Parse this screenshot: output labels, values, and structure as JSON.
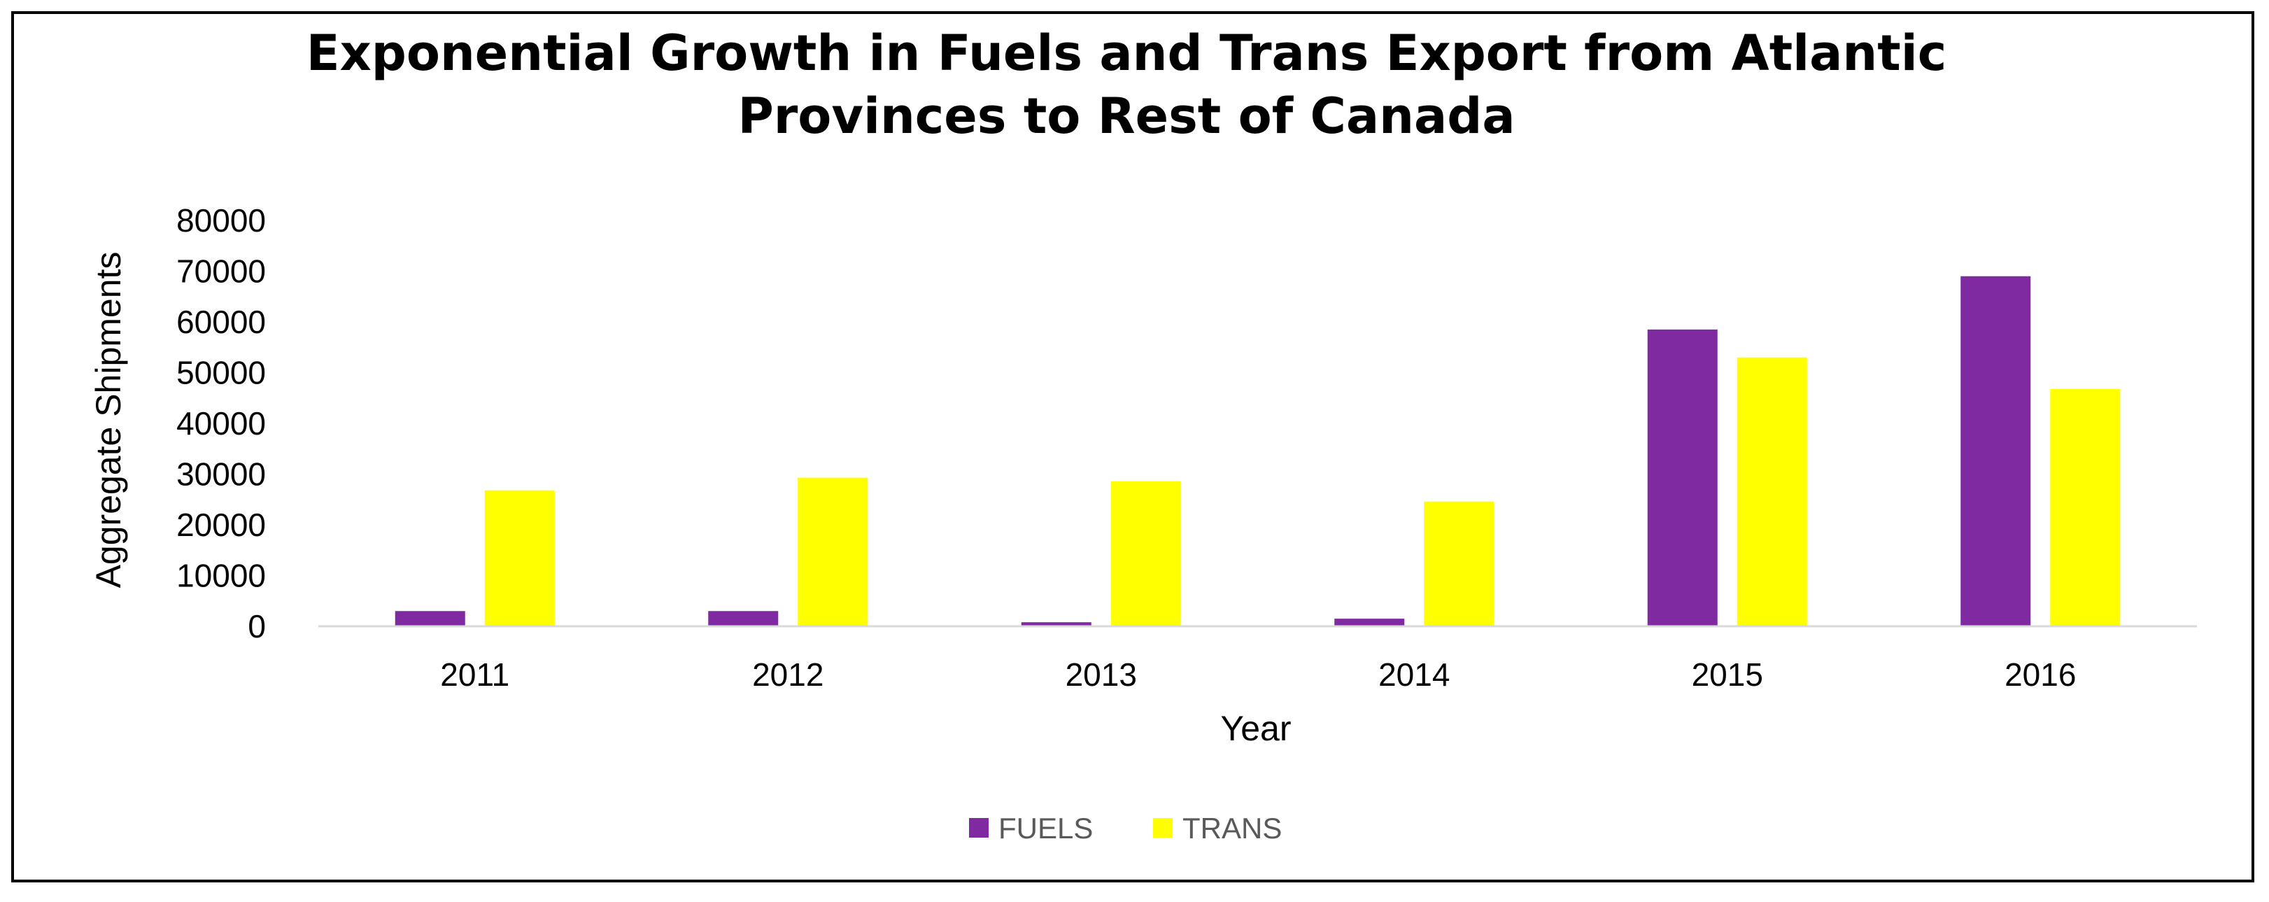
{
  "chart_data": {
    "type": "bar",
    "title_lines": [
      "Exponential Growth in Fuels and Trans Export from Atlantic",
      "Provinces to Rest of Canada"
    ],
    "xlabel": "Year",
    "ylabel": "Aggregate Shipments",
    "categories": [
      "2011",
      "2012",
      "2013",
      "2014",
      "2015",
      "2016"
    ],
    "ylim": [
      0,
      80000
    ],
    "yticks": [
      "0",
      "10000",
      "20000",
      "30000",
      "40000",
      "50000",
      "60000",
      "70000",
      "80000"
    ],
    "grid": false,
    "legend_position": "bottom",
    "series": [
      {
        "name": "FUELS",
        "color": "#7F2AA0",
        "values": [
          3000,
          3000,
          800,
          1500,
          58500,
          69000
        ]
      },
      {
        "name": "TRANS",
        "color": "#FFFF00",
        "values": [
          26800,
          29300,
          28600,
          24600,
          53000,
          46800
        ]
      }
    ]
  }
}
